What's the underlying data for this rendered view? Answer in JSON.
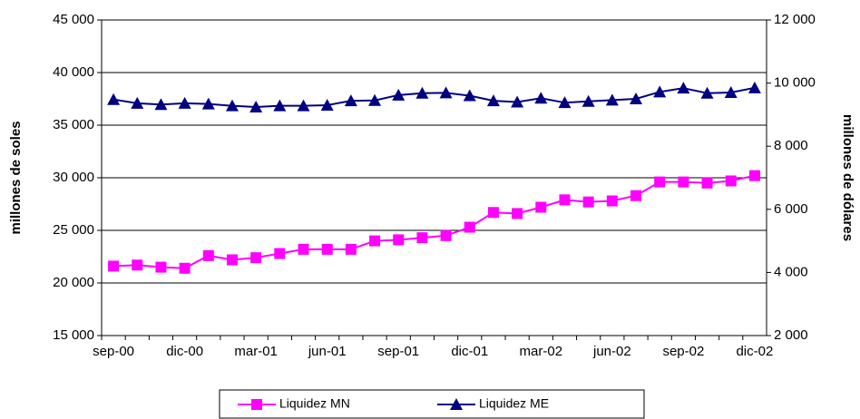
{
  "chart_data": {
    "type": "line",
    "categories": [
      "sep-00",
      null,
      null,
      "dic-00",
      null,
      null,
      "mar-01",
      null,
      null,
      "jun-01",
      null,
      null,
      "sep-01",
      null,
      null,
      "dic-01",
      null,
      null,
      "mar-02",
      null,
      null,
      "jun-02",
      null,
      null,
      "sep-02",
      null,
      null,
      "dic-02"
    ],
    "y_label": "millones de soles",
    "y2_label": "millones de dólares",
    "ylim": [
      15000,
      45000
    ],
    "yticks": [
      {
        "value": 15000,
        "label": "15 000"
      },
      {
        "value": 20000,
        "label": "20 000"
      },
      {
        "value": 25000,
        "label": "25 000"
      },
      {
        "value": 30000,
        "label": "30 000"
      },
      {
        "value": 35000,
        "label": "35 000"
      },
      {
        "value": 40000,
        "label": "40 000"
      },
      {
        "value": 45000,
        "label": "45 000"
      }
    ],
    "y2lim": [
      2000,
      12000
    ],
    "y2ticks": [
      {
        "value": 2000,
        "label": "2 000"
      },
      {
        "value": 4000,
        "label": "4 000"
      },
      {
        "value": 6000,
        "label": "6 000"
      },
      {
        "value": 8000,
        "label": "8 000"
      },
      {
        "value": 10000,
        "label": "10 000"
      },
      {
        "value": 12000,
        "label": "12 000"
      }
    ],
    "grid": true,
    "legend": "bottom",
    "series": [
      {
        "name": "Liquidez MN",
        "color": "#ff00ff",
        "marker": "square",
        "axis": "y",
        "values": [
          21600,
          21700,
          21500,
          21400,
          22600,
          22200,
          22400,
          22800,
          23200,
          23200,
          23200,
          24000,
          24100,
          24300,
          24500,
          25300,
          26700,
          26600,
          27200,
          27900,
          27700,
          27800,
          28300,
          29600,
          29600,
          29500,
          29700,
          30200
        ]
      },
      {
        "name": "Liquidez ME",
        "color": "#000080",
        "marker": "triangle",
        "axis": "y2",
        "values": [
          9480,
          9360,
          9320,
          9360,
          9340,
          9280,
          9240,
          9280,
          9280,
          9300,
          9440,
          9450,
          9620,
          9680,
          9690,
          9600,
          9440,
          9400,
          9520,
          9380,
          9420,
          9460,
          9500,
          9720,
          9840,
          9680,
          9700,
          9850
        ]
      }
    ]
  }
}
